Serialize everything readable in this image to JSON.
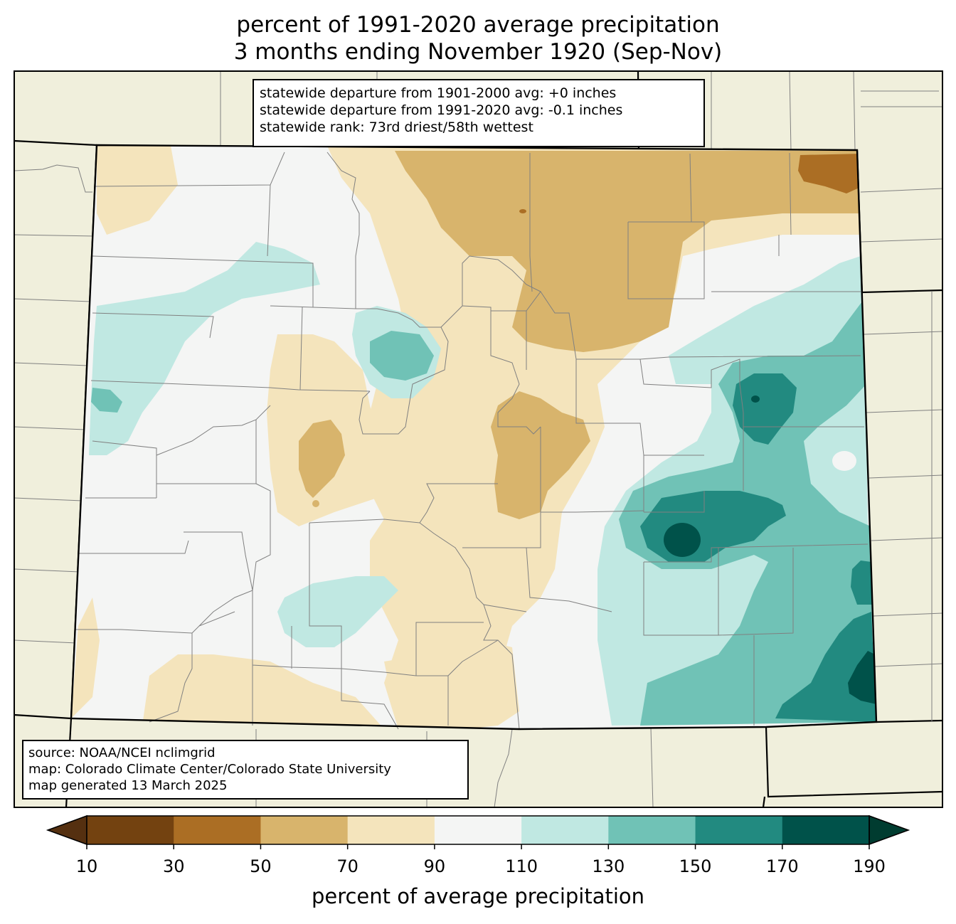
{
  "title": {
    "line1": "percent of 1991-2020 average precipitation",
    "line2": "3 months ending November 1920 (Sep-Nov)"
  },
  "stats": {
    "line1": "statewide departure from 1901-2000 avg: +0 inches",
    "line2": "statewide departure from 1991-2020 avg: -0.1 inches",
    "line3": "statewide rank: 73rd driest/58th wettest"
  },
  "source": {
    "line1": "source: NOAA/NCEI nclimgrid",
    "line2": "map: Colorado Climate Center/Colorado State University",
    "line3": "map generated 13 March 2025"
  },
  "colorbar": {
    "label": "percent of average precipitation",
    "ticks": [
      "10",
      "30",
      "50",
      "70",
      "90",
      "110",
      "130",
      "150",
      "170",
      "190"
    ],
    "colors": [
      "#734210",
      "#ab6e24",
      "#d8b46c",
      "#f4e4bc",
      "#f4f5f4",
      "#c0e8e2",
      "#70c2b6",
      "#228a80",
      "#00524a"
    ],
    "under_color": "#553010",
    "over_color": "#003c30"
  },
  "map_colors": {
    "background": "#f0efdc",
    "state_fill": "#f4f5f4"
  }
}
